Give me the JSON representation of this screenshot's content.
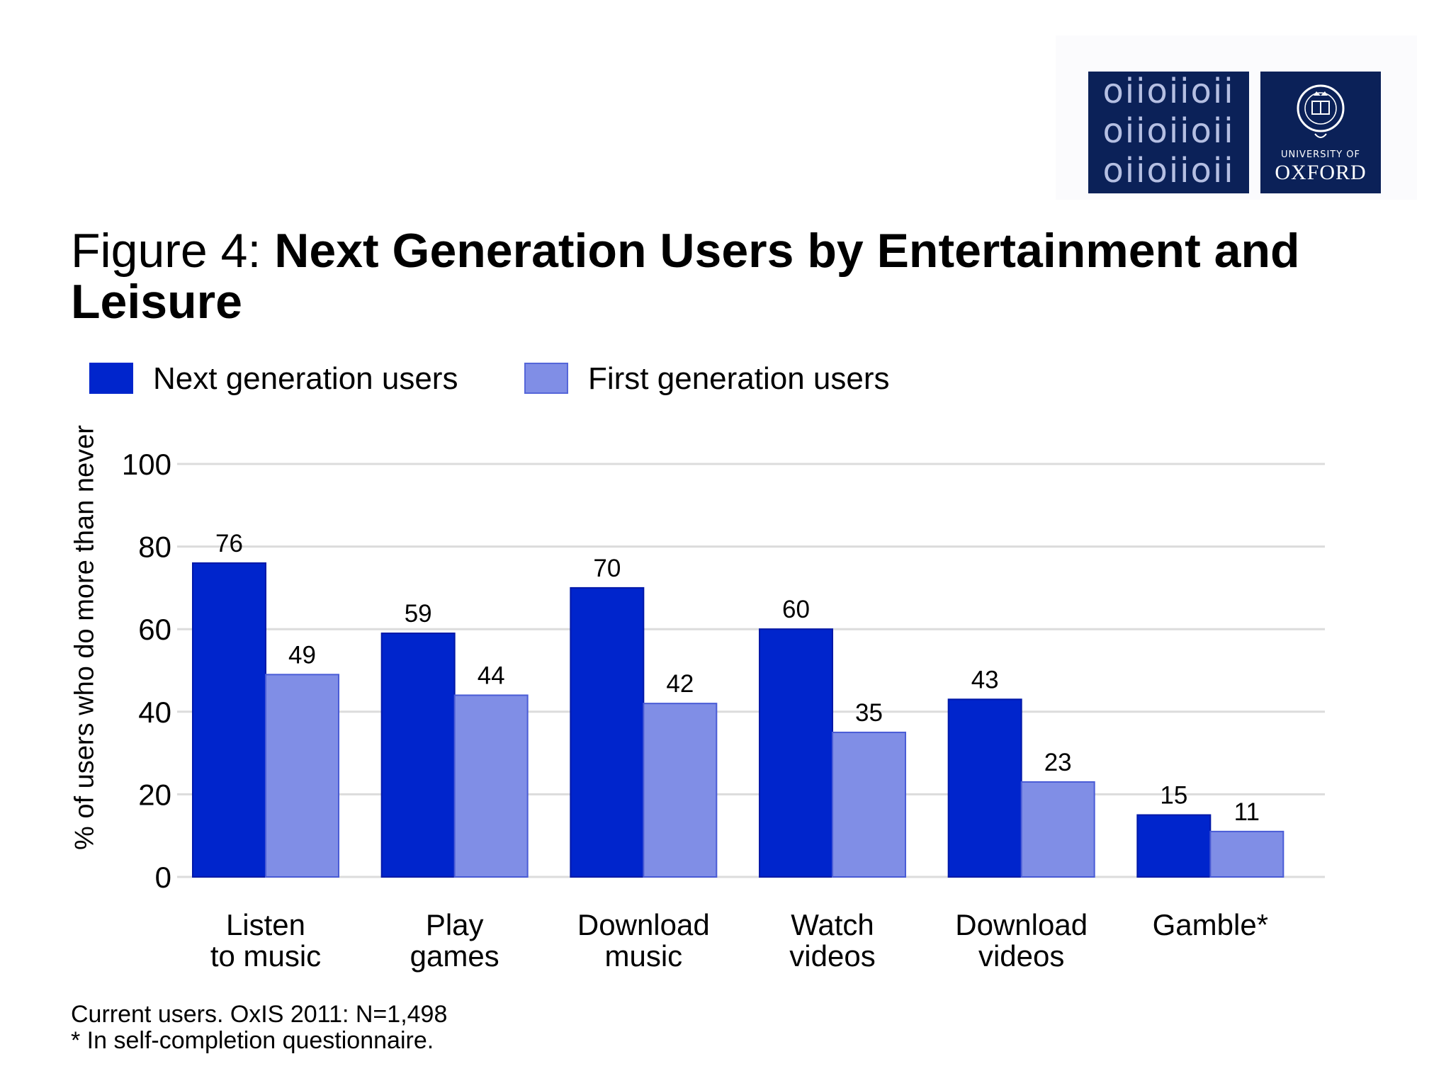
{
  "logo": {
    "binary_rows": [
      "oiioiioii",
      "oiioiioii",
      "oiioiioii"
    ],
    "university_of": "UNIVERSITY OF",
    "oxford": "OXFORD",
    "colors": {
      "background": "#0b2158",
      "binary_text": "#b5bfe2"
    }
  },
  "title": {
    "prefix": "Figure 4:",
    "main": "Next Generation Users by Entertainment and Leisure"
  },
  "footnotes": [
    "Current users. OxIS 2011: N=1,498",
    "* In self-completion questionnaire."
  ],
  "chart_data": {
    "type": "bar",
    "title": "Next Generation Users by Entertainment and Leisure",
    "ylabel": "% of users who do more than never",
    "xlabel": "",
    "ylim": [
      0,
      100
    ],
    "yticks": [
      0,
      20,
      40,
      60,
      80,
      100
    ],
    "grid": true,
    "legend_position": "top-left",
    "categories": [
      [
        "Listen",
        "to music"
      ],
      [
        "Play",
        "games"
      ],
      [
        "Download",
        "music"
      ],
      [
        "Watch",
        "videos"
      ],
      [
        "Download",
        "videos"
      ],
      [
        "Gamble*"
      ]
    ],
    "series": [
      {
        "name": "Next generation users",
        "color": "#0025cc",
        "values": [
          76,
          59,
          70,
          60,
          43,
          15
        ]
      },
      {
        "name": "First generation users",
        "color": "#808ee6",
        "values": [
          49,
          44,
          42,
          35,
          23,
          11
        ]
      }
    ]
  }
}
